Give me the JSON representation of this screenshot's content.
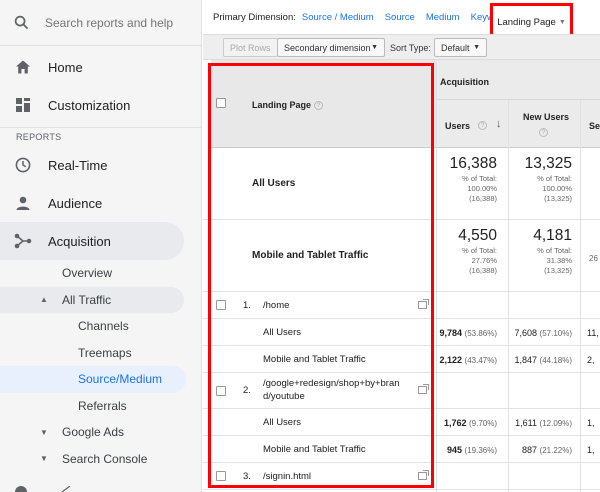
{
  "sidebar": {
    "search_placeholder": "Search reports and help",
    "home": "Home",
    "customization": "Customization",
    "reports_label": "REPORTS",
    "realtime": "Real-Time",
    "audience": "Audience",
    "acquisition": "Acquisition",
    "overview": "Overview",
    "all_traffic": "All Traffic",
    "channels": "Channels",
    "treemaps": "Treemaps",
    "source_medium": "Source/Medium",
    "referrals": "Referrals",
    "google_ads": "Google Ads",
    "search_console": "Search Console"
  },
  "dimension_bar": {
    "label": "Primary Dimension:",
    "options": [
      "Source / Medium",
      "Source",
      "Medium",
      "Keyword"
    ],
    "selected": "Landing Page"
  },
  "controls": {
    "plot_rows": "Plot Rows",
    "secondary_dimension": "Secondary dimension",
    "sort_type_label": "Sort Type:",
    "sort_type_value": "Default"
  },
  "table": {
    "group_header": "Acquisition",
    "col_landing_page": "Landing Page",
    "col_users": "Users",
    "col_new_users": "New Users",
    "col_sessions_partial": "Se",
    "summary": [
      {
        "label": "All Users",
        "users": "16,388",
        "users_pct": "% of Total:",
        "users_pct_val": "100.00%",
        "users_total": "(16,388)",
        "new_users": "13,325",
        "new_pct": "% of Total:",
        "new_pct_val": "100.00%",
        "new_total": "(13,325)"
      },
      {
        "label": "Mobile and Tablet Traffic",
        "users": "4,550",
        "users_pct": "% of Total:",
        "users_pct_val": "27.76%",
        "users_total": "(16,388)",
        "new_users": "4,181",
        "new_pct": "% of Total:",
        "new_pct_val": "31.38%",
        "new_total": "(13,325)",
        "sessions_partial": "26"
      }
    ],
    "pages": [
      {
        "num": "1.",
        "page": "/home",
        "segments": [
          {
            "label": "All Users",
            "users": "9,784",
            "users_pct": "(53.86%)",
            "new_users": "7,608",
            "new_pct": "(57.10%)",
            "sessions_partial": "11,"
          },
          {
            "label": "Mobile and Tablet Traffic",
            "users": "2,122",
            "users_pct": "(43.47%)",
            "new_users": "1,847",
            "new_pct": "(44.18%)",
            "sessions_partial": "2,"
          }
        ]
      },
      {
        "num": "2.",
        "page_line1": "/google+redesign/shop+by+bran",
        "page_line2": "d/youtube",
        "segments": [
          {
            "label": "All Users",
            "users": "1,762",
            "users_pct": "(9.70%)",
            "new_users": "1,611",
            "new_pct": "(12.09%)",
            "sessions_partial": "1,"
          },
          {
            "label": "Mobile and Tablet Traffic",
            "users": "945",
            "users_pct": "(19.36%)",
            "new_users": "887",
            "new_pct": "(21.22%)",
            "sessions_partial": "1,"
          }
        ]
      },
      {
        "num": "3.",
        "page": "/signin.html"
      }
    ]
  },
  "colors": {
    "highlight_red": "#ff0000",
    "link_blue": "#1a73e8"
  }
}
